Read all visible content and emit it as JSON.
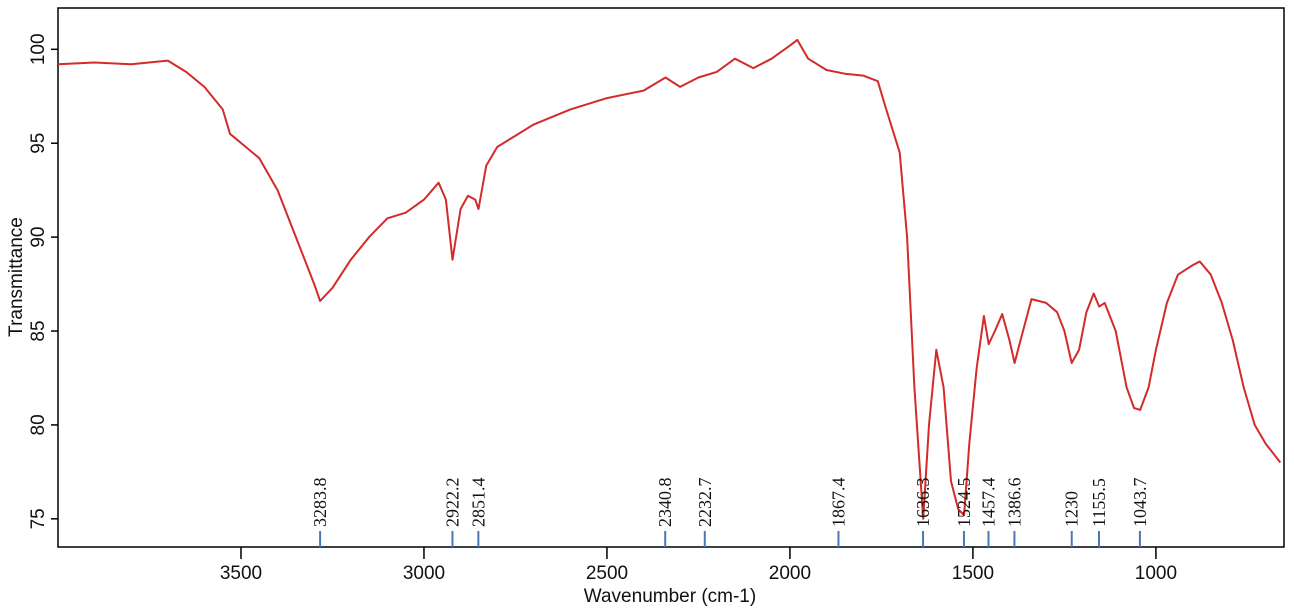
{
  "chart_data": {
    "type": "line",
    "xlabel": "Wavenumber (cm-1)",
    "ylabel": "Transmittance",
    "xlim": [
      4000,
      650
    ],
    "ylim": [
      73.5,
      102.2
    ],
    "xticks": [
      3500,
      3000,
      2500,
      2000,
      1500,
      1000
    ],
    "yticks": [
      75,
      80,
      85,
      90,
      95,
      100
    ],
    "color": "#d42a2a",
    "peak_color": "#4a78b4",
    "x": [
      4000,
      3900,
      3800,
      3700,
      3650,
      3600,
      3550,
      3530,
      3450,
      3400,
      3350,
      3300,
      3283.8,
      3250,
      3200,
      3150,
      3100,
      3050,
      3000,
      2960,
      2940,
      2922,
      2900,
      2880,
      2860,
      2851,
      2830,
      2800,
      2700,
      2600,
      2500,
      2400,
      2340,
      2300,
      2250,
      2200,
      2150,
      2100,
      2050,
      2000,
      1980,
      1950,
      1900,
      1850,
      1800,
      1760,
      1740,
      1700,
      1680,
      1660,
      1636,
      1620,
      1600,
      1580,
      1560,
      1540,
      1524,
      1510,
      1490,
      1470,
      1457,
      1440,
      1420,
      1400,
      1386,
      1370,
      1340,
      1300,
      1270,
      1250,
      1230,
      1210,
      1190,
      1170,
      1155,
      1140,
      1110,
      1080,
      1060,
      1043,
      1020,
      1000,
      970,
      940,
      900,
      880,
      850,
      820,
      790,
      760,
      730,
      700,
      660
    ],
    "values": [
      99.2,
      99.3,
      99.2,
      99.4,
      98.8,
      98.0,
      96.8,
      95.5,
      94.2,
      92.5,
      90.0,
      87.5,
      86.6,
      87.3,
      88.8,
      90.0,
      91.0,
      91.3,
      92.0,
      92.9,
      92.0,
      88.8,
      91.5,
      92.2,
      92.0,
      91.5,
      93.8,
      94.8,
      96.0,
      96.8,
      97.4,
      97.8,
      98.5,
      98.0,
      98.5,
      98.8,
      99.5,
      99.0,
      99.5,
      100.2,
      100.5,
      99.5,
      98.9,
      98.7,
      98.6,
      98.3,
      97.0,
      94.5,
      90.0,
      82.0,
      75.0,
      80.0,
      84.0,
      82.0,
      77.0,
      75.5,
      75.2,
      79.0,
      83.0,
      85.8,
      84.3,
      85.0,
      85.9,
      84.5,
      83.3,
      84.5,
      86.7,
      86.5,
      86.0,
      85.0,
      83.3,
      84.0,
      86.0,
      87.0,
      86.3,
      86.5,
      85.0,
      82.0,
      80.9,
      80.8,
      82.0,
      84.0,
      86.5,
      88.0,
      88.5,
      88.7,
      88.0,
      86.5,
      84.5,
      82.0,
      80.0,
      79.0,
      78.0
    ],
    "peaks": [
      3283.8,
      2922.2,
      2851.4,
      2340.8,
      2232.7,
      1867.4,
      1636.3,
      1524.5,
      1457.4,
      1386.6,
      1230,
      1155.5,
      1043.7
    ]
  }
}
